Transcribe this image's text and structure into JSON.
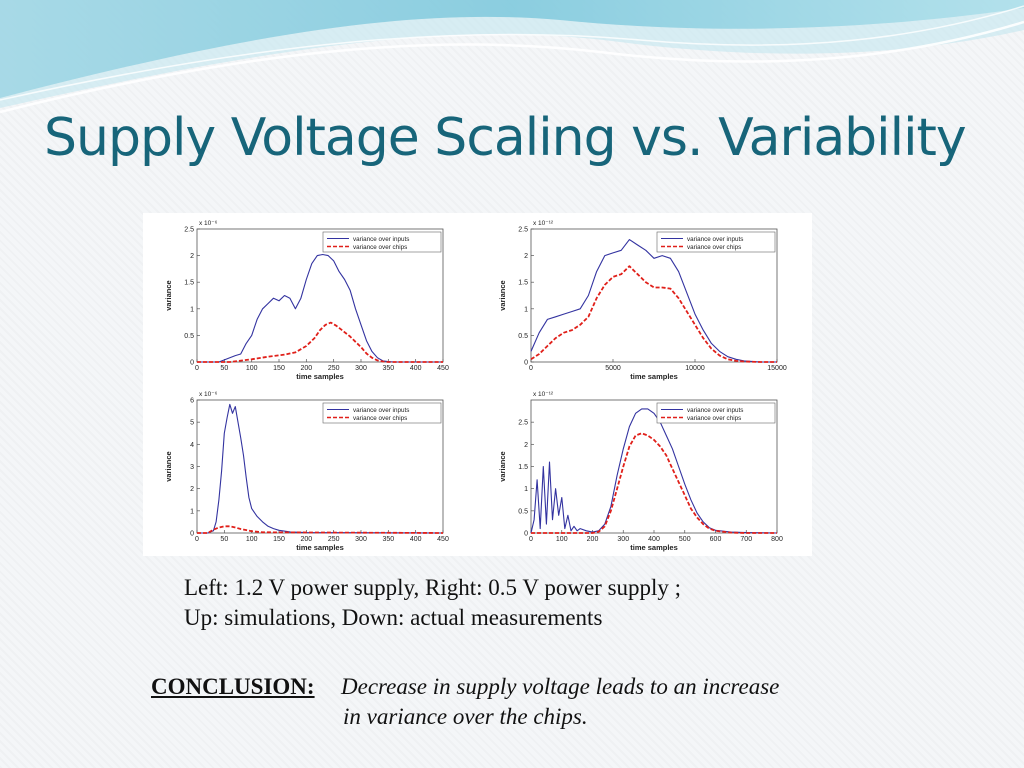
{
  "slide": {
    "title": "Supply Voltage Scaling vs. Variability",
    "caption_line_1": "Left: 1.2 V power supply, Right: 0.5 V power supply ;",
    "caption_line_2": "Up: simulations, Down: actual measurements",
    "conclusion_label": "CONCLUSION:",
    "conclusion_line_1": "Decrease in supply voltage leads to an increase",
    "conclusion_line_2": "in variance over the chips.",
    "colors": {
      "title": "#17657a",
      "inputs_series": "#3333a0",
      "chips_series": "#e0201a"
    }
  },
  "chart_data": [
    {
      "type": "line",
      "title": "",
      "xlabel": "time samples",
      "ylabel": "variance",
      "exponent": "x 10⁻⁶",
      "xlim": [
        0,
        450
      ],
      "ylim": [
        0,
        2.5
      ],
      "xticks": [
        0,
        50,
        100,
        150,
        200,
        250,
        300,
        350,
        400,
        450
      ],
      "yticks": [
        0,
        0.5,
        1,
        1.5,
        2,
        2.5
      ],
      "legend": "top-right",
      "series": [
        {
          "name": "variance over inputs",
          "color": "#3333a0",
          "dash": false,
          "x": [
            0,
            40,
            60,
            70,
            80,
            90,
            100,
            110,
            120,
            130,
            140,
            150,
            160,
            170,
            180,
            190,
            200,
            210,
            220,
            230,
            240,
            250,
            260,
            270,
            280,
            290,
            300,
            310,
            320,
            330,
            340,
            350,
            360,
            380,
            450
          ],
          "y": [
            0,
            0,
            0.08,
            0.12,
            0.15,
            0.35,
            0.5,
            0.8,
            1.0,
            1.1,
            1.2,
            1.15,
            1.25,
            1.2,
            1.0,
            1.2,
            1.55,
            1.85,
            2.0,
            2.02,
            2.0,
            1.9,
            1.7,
            1.55,
            1.35,
            1.0,
            0.7,
            0.4,
            0.2,
            0.08,
            0.02,
            0.01,
            0,
            0,
            0
          ]
        },
        {
          "name": "variance over chips",
          "color": "#e0201a",
          "dash": true,
          "x": [
            0,
            60,
            100,
            130,
            160,
            180,
            200,
            215,
            225,
            235,
            245,
            255,
            265,
            280,
            290,
            300,
            310,
            320,
            330,
            340,
            350,
            450
          ],
          "y": [
            0,
            0,
            0.05,
            0.1,
            0.14,
            0.18,
            0.3,
            0.45,
            0.6,
            0.7,
            0.74,
            0.68,
            0.6,
            0.48,
            0.38,
            0.28,
            0.16,
            0.08,
            0.03,
            0.01,
            0,
            0
          ]
        }
      ]
    },
    {
      "type": "line",
      "title": "",
      "xlabel": "time samples",
      "ylabel": "variance",
      "exponent": "x 10⁻¹²",
      "xlim": [
        0,
        15000
      ],
      "ylim": [
        0,
        2.5
      ],
      "xticks": [
        0,
        5000,
        10000,
        15000
      ],
      "yticks": [
        0,
        0.5,
        1,
        1.5,
        2,
        2.5
      ],
      "legend": "top-right",
      "series": [
        {
          "name": "variance over inputs",
          "color": "#3333a0",
          "dash": false,
          "x": [
            0,
            500,
            1000,
            1500,
            2000,
            2500,
            3000,
            3500,
            4000,
            4500,
            5000,
            5500,
            6000,
            6500,
            7000,
            7500,
            8000,
            8500,
            9000,
            9500,
            10000,
            10500,
            11000,
            11500,
            12000,
            12500,
            13000,
            14000,
            15000
          ],
          "y": [
            0.2,
            0.55,
            0.8,
            0.85,
            0.9,
            0.95,
            1.0,
            1.25,
            1.7,
            2.0,
            2.05,
            2.1,
            2.3,
            2.2,
            2.1,
            1.95,
            2.0,
            1.95,
            1.7,
            1.3,
            0.9,
            0.6,
            0.35,
            0.2,
            0.1,
            0.05,
            0.02,
            0,
            0
          ]
        },
        {
          "name": "variance over chips",
          "color": "#e0201a",
          "dash": true,
          "x": [
            0,
            500,
            1000,
            1500,
            2000,
            2500,
            3000,
            3500,
            4000,
            4500,
            5000,
            5500,
            6000,
            6500,
            7000,
            7500,
            8000,
            8500,
            9000,
            9500,
            10000,
            10500,
            11000,
            11500,
            12000,
            12500,
            13000,
            14000,
            15000
          ],
          "y": [
            0.05,
            0.15,
            0.3,
            0.45,
            0.55,
            0.6,
            0.7,
            0.85,
            1.2,
            1.45,
            1.6,
            1.65,
            1.8,
            1.65,
            1.5,
            1.4,
            1.4,
            1.38,
            1.2,
            0.95,
            0.7,
            0.45,
            0.25,
            0.12,
            0.05,
            0.02,
            0.01,
            0,
            0
          ]
        }
      ]
    },
    {
      "type": "line",
      "title": "",
      "xlabel": "time samples",
      "ylabel": "variance",
      "exponent": "x 10⁻⁶",
      "xlim": [
        0,
        450
      ],
      "ylim": [
        0,
        6
      ],
      "xticks": [
        0,
        50,
        100,
        150,
        200,
        250,
        300,
        350,
        400,
        450
      ],
      "yticks": [
        0,
        1,
        2,
        3,
        4,
        5,
        6
      ],
      "legend": "top-right",
      "series": [
        {
          "name": "variance over inputs",
          "color": "#3333a0",
          "dash": false,
          "x": [
            0,
            20,
            30,
            35,
            40,
            45,
            50,
            55,
            60,
            65,
            70,
            75,
            80,
            85,
            90,
            95,
            100,
            110,
            120,
            130,
            140,
            150,
            170,
            200,
            450
          ],
          "y": [
            0,
            0,
            0.1,
            0.5,
            1.5,
            2.8,
            4.5,
            5.2,
            5.8,
            5.4,
            5.7,
            5.0,
            4.3,
            3.5,
            2.5,
            1.6,
            1.1,
            0.75,
            0.5,
            0.3,
            0.2,
            0.12,
            0.05,
            0.02,
            0
          ]
        },
        {
          "name": "variance over chips",
          "color": "#e0201a",
          "dash": true,
          "x": [
            0,
            20,
            30,
            40,
            50,
            60,
            70,
            80,
            100,
            120,
            450
          ],
          "y": [
            0,
            0,
            0.15,
            0.25,
            0.3,
            0.3,
            0.25,
            0.18,
            0.08,
            0.03,
            0
          ]
        }
      ]
    },
    {
      "type": "line",
      "title": "",
      "xlabel": "time samples",
      "ylabel": "variance",
      "exponent": "x 10⁻¹²",
      "xlim": [
        0,
        800
      ],
      "ylim": [
        0,
        3
      ],
      "xticks": [
        0,
        100,
        200,
        300,
        400,
        500,
        600,
        700,
        800
      ],
      "yticks": [
        0,
        0.5,
        1,
        1.5,
        2,
        2.5
      ],
      "legend": "top-right",
      "series": [
        {
          "name": "variance over inputs",
          "color": "#3333a0",
          "dash": false,
          "x": [
            0,
            10,
            20,
            30,
            40,
            50,
            60,
            70,
            80,
            90,
            100,
            110,
            120,
            130,
            140,
            150,
            160,
            180,
            200,
            220,
            240,
            260,
            280,
            300,
            320,
            340,
            360,
            380,
            400,
            420,
            440,
            460,
            480,
            500,
            520,
            540,
            560,
            580,
            600,
            650,
            700,
            800
          ],
          "y": [
            0,
            0.3,
            1.2,
            0.1,
            1.5,
            0.2,
            1.6,
            0.3,
            1.0,
            0.4,
            0.8,
            0.1,
            0.4,
            0.05,
            0.15,
            0.05,
            0.1,
            0.05,
            0.02,
            0.05,
            0.2,
            0.6,
            1.3,
            1.9,
            2.4,
            2.7,
            2.8,
            2.8,
            2.7,
            2.5,
            2.2,
            1.9,
            1.5,
            1.1,
            0.75,
            0.45,
            0.25,
            0.12,
            0.06,
            0.02,
            0.01,
            0
          ]
        },
        {
          "name": "variance over chips",
          "color": "#e0201a",
          "dash": true,
          "x": [
            0,
            200,
            220,
            240,
            260,
            280,
            300,
            320,
            340,
            360,
            380,
            400,
            420,
            440,
            460,
            480,
            500,
            520,
            540,
            560,
            580,
            600,
            650,
            700,
            800
          ],
          "y": [
            0,
            0,
            0.03,
            0.15,
            0.5,
            1.0,
            1.5,
            1.95,
            2.2,
            2.25,
            2.2,
            2.1,
            1.95,
            1.75,
            1.45,
            1.15,
            0.85,
            0.55,
            0.35,
            0.2,
            0.1,
            0.05,
            0.01,
            0,
            0
          ]
        }
      ]
    }
  ]
}
